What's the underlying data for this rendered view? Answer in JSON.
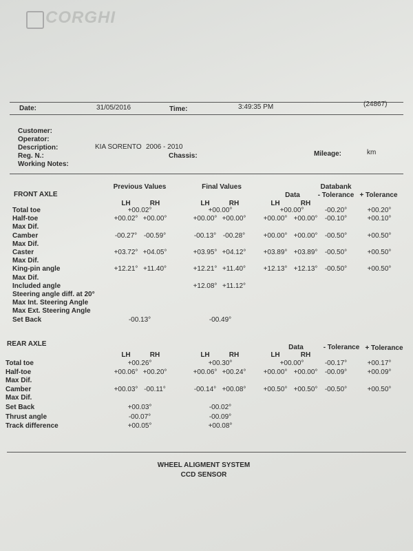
{
  "header": {
    "brand": "CORGHI",
    "date_label": "Date:",
    "date": "31/05/2016",
    "time_label": "Time:",
    "time": "3:49:35 PM",
    "ref": "(24867)"
  },
  "info": {
    "customer": "Customer:",
    "operator": "Operator:",
    "description": "Description:",
    "model": "KIA SORENTO",
    "years": "2006 - 2010",
    "reg": "Reg. N.:",
    "chassis": "Chassis:",
    "mileage": "Mileage:",
    "km": "km",
    "notes": "Working Notes:"
  },
  "front_axle": {
    "title": "FRONT AXLE",
    "previous": "Previous Values",
    "final": "Final Values",
    "databank": "Databank",
    "data": "Data",
    "minus_tol": "- Tolerance",
    "plus_tol": "+ Tolerance",
    "lh": "LH",
    "rh": "RH",
    "rows": [
      {
        "label": "Total toe",
        "prev": "+00.02°",
        "final": "+00.00°",
        "data": "+00.00°",
        "minus": "-00.20°",
        "plus": "+00.20°"
      },
      {
        "label": "Half-toe",
        "prev": [
          "+00.02°",
          "+00.00°"
        ],
        "final": [
          "+00.00°",
          "+00.00°"
        ],
        "data": [
          "+00.00°",
          "+00.00°"
        ],
        "minus": "-00.10°",
        "plus": "+00.10°"
      },
      {
        "label": "Max Dif."
      },
      {
        "label": "Camber",
        "prev": [
          "-00.27°",
          "-00.59°"
        ],
        "final": [
          "-00.13°",
          "-00.28°"
        ],
        "data": [
          "+00.00°",
          "+00.00°"
        ],
        "minus": "-00.50°",
        "plus": "+00.50°"
      },
      {
        "label": "Max Dif."
      },
      {
        "label": "Caster",
        "prev": [
          "+03.72°",
          "+04.05°"
        ],
        "final": [
          "+03.95°",
          "+04.12°"
        ],
        "data": [
          "+03.89°",
          "+03.89°"
        ],
        "minus": "-00.50°",
        "plus": "+00.50°"
      },
      {
        "label": "Max Dif."
      },
      {
        "label": "King-pin angle",
        "prev": [
          "+12.21°",
          "+11.40°"
        ],
        "final": [
          "+12.21°",
          "+11.40°"
        ],
        "data": [
          "+12.13°",
          "+12.13°"
        ],
        "minus": "-00.50°",
        "plus": "+00.50°"
      },
      {
        "label": "Max Dif."
      },
      {
        "label": "Included angle",
        "final": [
          "+12.08°",
          "+11.12°"
        ]
      },
      {
        "label": "Steering angle diff. at 20°"
      },
      {
        "label": "Max Int. Steering Angle"
      },
      {
        "label": "Max Ext. Steering Angle"
      },
      {
        "label": "Set Back",
        "prev": "-00.13°",
        "final": "-00.49°"
      }
    ]
  },
  "rear_axle": {
    "title": "REAR AXLE",
    "data": "Data",
    "minus_tol": "- Tolerance",
    "plus_tol": "+ Tolerance",
    "lh": "LH",
    "rh": "RH",
    "rows": [
      {
        "label": "Total toe",
        "prev": "+00.26°",
        "final": "+00.30°",
        "data": "+00.00°",
        "minus": "-00.17°",
        "plus": "+00.17°"
      },
      {
        "label": "Half-toe",
        "prev": [
          "+00.06°",
          "+00.20°"
        ],
        "final": [
          "+00.06°",
          "+00.24°"
        ],
        "data": [
          "+00.00°",
          "+00.00°"
        ],
        "minus": "-00.09°",
        "plus": "+00.09°"
      },
      {
        "label": "Max Dif."
      },
      {
        "label": "Camber",
        "prev": [
          "+00.03°",
          "-00.11°"
        ],
        "final": [
          "-00.14°",
          "+00.08°"
        ],
        "data": [
          "+00.50°",
          "+00.50°"
        ],
        "minus": "-00.50°",
        "plus": "+00.50°"
      },
      {
        "label": "Max Dif."
      },
      {
        "label": "Set Back",
        "prev": "+00.03°",
        "final": "-00.02°"
      },
      {
        "label": "Thrust angle",
        "prev": "-00.07°",
        "final": "-00.09°"
      },
      {
        "label": "Track difference",
        "prev": "+00.05°",
        "final": "+00.08°"
      }
    ]
  },
  "footer": {
    "line1": "WHEEL ALIGMENT SYSTEM",
    "line2": "CCD SENSOR"
  }
}
